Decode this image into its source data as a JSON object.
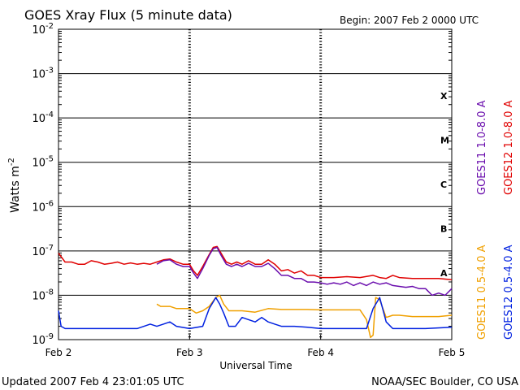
{
  "header": {
    "title": "GOES Xray Flux (5 minute data)",
    "begin": "Begin:  2007 Feb 2 0000 UTC"
  },
  "footer": {
    "updated": "Updated 2007 Feb  4 23:01:05 UTC",
    "source": "NOAA/SEC Boulder, CO USA"
  },
  "chart_data": {
    "type": "line",
    "title": "GOES Xray Flux (5 minute data)",
    "xlabel": "Universal Time",
    "ylabel": "Watts m",
    "ylabel_exponent": "-2",
    "x_ticks": [
      "Feb 2",
      "Feb 3",
      "Feb 4",
      "Feb 5"
    ],
    "y_scale": "log",
    "ylim": [
      1e-09,
      0.01
    ],
    "y_ticks": [
      {
        "base": "10",
        "exp": "-9"
      },
      {
        "base": "10",
        "exp": "-8"
      },
      {
        "base": "10",
        "exp": "-7"
      },
      {
        "base": "10",
        "exp": "-6"
      },
      {
        "base": "10",
        "exp": "-5"
      },
      {
        "base": "10",
        "exp": "-4"
      },
      {
        "base": "10",
        "exp": "-3"
      },
      {
        "base": "10",
        "exp": "-2"
      }
    ],
    "flare_classes": [
      {
        "label": "X",
        "exponent": -4
      },
      {
        "label": "M",
        "exponent": -5
      },
      {
        "label": "C",
        "exponent": -6
      },
      {
        "label": "B",
        "exponent": -7
      },
      {
        "label": "A",
        "exponent": -8
      }
    ],
    "legend": [
      {
        "name": "GOES11 1.0-8.0 A",
        "color": "#6a0dad"
      },
      {
        "name": "GOES12 1.0-8.0 A",
        "color": "#e00000"
      },
      {
        "name": "GOES11 0.5-4.0 A",
        "color": "#f0a000"
      },
      {
        "name": "GOES12 0.5-4.0 A",
        "color": "#0020e0"
      }
    ],
    "x_unit": "days since 2007 Feb 2 0000 UTC",
    "series": [
      {
        "name": "GOES12 1.0-8.0 A",
        "color": "#e00000",
        "points": [
          [
            0,
            -7.05
          ],
          [
            0.05,
            -7.25
          ],
          [
            0.1,
            -7.25
          ],
          [
            0.15,
            -7.3
          ],
          [
            0.2,
            -7.3
          ],
          [
            0.25,
            -7.22
          ],
          [
            0.3,
            -7.25
          ],
          [
            0.35,
            -7.3
          ],
          [
            0.4,
            -7.28
          ],
          [
            0.45,
            -7.25
          ],
          [
            0.5,
            -7.3
          ],
          [
            0.55,
            -7.27
          ],
          [
            0.6,
            -7.3
          ],
          [
            0.65,
            -7.28
          ],
          [
            0.7,
            -7.3
          ],
          [
            0.75,
            -7.25
          ],
          [
            0.8,
            -7.2
          ],
          [
            0.85,
            -7.18
          ],
          [
            0.9,
            -7.25
          ],
          [
            0.95,
            -7.3
          ],
          [
            1.0,
            -7.3
          ],
          [
            1.03,
            -7.45
          ],
          [
            1.06,
            -7.55
          ],
          [
            1.1,
            -7.35
          ],
          [
            1.15,
            -7.08
          ],
          [
            1.18,
            -6.92
          ],
          [
            1.21,
            -6.9
          ],
          [
            1.24,
            -7.05
          ],
          [
            1.28,
            -7.25
          ],
          [
            1.32,
            -7.3
          ],
          [
            1.36,
            -7.25
          ],
          [
            1.4,
            -7.3
          ],
          [
            1.45,
            -7.22
          ],
          [
            1.5,
            -7.3
          ],
          [
            1.55,
            -7.3
          ],
          [
            1.6,
            -7.2
          ],
          [
            1.65,
            -7.3
          ],
          [
            1.7,
            -7.45
          ],
          [
            1.75,
            -7.42
          ],
          [
            1.8,
            -7.5
          ],
          [
            1.85,
            -7.45
          ],
          [
            1.9,
            -7.55
          ],
          [
            1.95,
            -7.55
          ],
          [
            2.0,
            -7.6
          ],
          [
            2.1,
            -7.6
          ],
          [
            2.2,
            -7.58
          ],
          [
            2.3,
            -7.6
          ],
          [
            2.4,
            -7.55
          ],
          [
            2.45,
            -7.6
          ],
          [
            2.5,
            -7.62
          ],
          [
            2.55,
            -7.55
          ],
          [
            2.6,
            -7.6
          ],
          [
            2.7,
            -7.62
          ],
          [
            2.8,
            -7.62
          ],
          [
            2.9,
            -7.62
          ],
          [
            3.0,
            -7.65
          ]
        ]
      },
      {
        "name": "GOES11 1.0-8.0 A",
        "color": "#6a0dad",
        "points": [
          [
            0.75,
            -7.3
          ],
          [
            0.8,
            -7.22
          ],
          [
            0.85,
            -7.2
          ],
          [
            0.9,
            -7.3
          ],
          [
            0.95,
            -7.35
          ],
          [
            1.0,
            -7.35
          ],
          [
            1.03,
            -7.5
          ],
          [
            1.06,
            -7.62
          ],
          [
            1.1,
            -7.4
          ],
          [
            1.15,
            -7.1
          ],
          [
            1.18,
            -6.95
          ],
          [
            1.21,
            -6.92
          ],
          [
            1.24,
            -7.1
          ],
          [
            1.28,
            -7.3
          ],
          [
            1.32,
            -7.35
          ],
          [
            1.36,
            -7.3
          ],
          [
            1.4,
            -7.35
          ],
          [
            1.45,
            -7.28
          ],
          [
            1.5,
            -7.35
          ],
          [
            1.55,
            -7.35
          ],
          [
            1.6,
            -7.28
          ],
          [
            1.65,
            -7.4
          ],
          [
            1.7,
            -7.55
          ],
          [
            1.75,
            -7.55
          ],
          [
            1.8,
            -7.62
          ],
          [
            1.85,
            -7.62
          ],
          [
            1.9,
            -7.7
          ],
          [
            1.95,
            -7.7
          ],
          [
            2.0,
            -7.72
          ],
          [
            2.05,
            -7.75
          ],
          [
            2.1,
            -7.72
          ],
          [
            2.15,
            -7.75
          ],
          [
            2.2,
            -7.7
          ],
          [
            2.25,
            -7.78
          ],
          [
            2.3,
            -7.72
          ],
          [
            2.35,
            -7.78
          ],
          [
            2.4,
            -7.7
          ],
          [
            2.45,
            -7.75
          ],
          [
            2.5,
            -7.72
          ],
          [
            2.55,
            -7.78
          ],
          [
            2.6,
            -7.8
          ],
          [
            2.65,
            -7.82
          ],
          [
            2.7,
            -7.8
          ],
          [
            2.75,
            -7.85
          ],
          [
            2.8,
            -7.85
          ],
          [
            2.85,
            -8.0
          ],
          [
            2.9,
            -7.95
          ],
          [
            2.95,
            -8.0
          ],
          [
            3.0,
            -7.85
          ]
        ]
      },
      {
        "name": "GOES11 0.5-4.0 A",
        "color": "#f0a000",
        "points": [
          [
            0.75,
            -8.2
          ],
          [
            0.78,
            -8.25
          ],
          [
            0.85,
            -8.25
          ],
          [
            0.9,
            -8.3
          ],
          [
            1.0,
            -8.3
          ],
          [
            1.05,
            -8.4
          ],
          [
            1.1,
            -8.35
          ],
          [
            1.15,
            -8.25
          ],
          [
            1.2,
            -8.05
          ],
          [
            1.23,
            -8.0
          ],
          [
            1.26,
            -8.2
          ],
          [
            1.3,
            -8.35
          ],
          [
            1.4,
            -8.35
          ],
          [
            1.5,
            -8.38
          ],
          [
            1.6,
            -8.3
          ],
          [
            1.7,
            -8.32
          ],
          [
            1.8,
            -8.32
          ],
          [
            1.9,
            -8.32
          ],
          [
            2.0,
            -8.33
          ],
          [
            2.1,
            -8.33
          ],
          [
            2.2,
            -8.33
          ],
          [
            2.3,
            -8.33
          ],
          [
            2.35,
            -8.55
          ],
          [
            2.38,
            -8.95
          ],
          [
            2.4,
            -8.9
          ],
          [
            2.42,
            -8.05
          ],
          [
            2.45,
            -8.1
          ],
          [
            2.5,
            -8.5
          ],
          [
            2.55,
            -8.45
          ],
          [
            2.6,
            -8.45
          ],
          [
            2.7,
            -8.48
          ],
          [
            2.8,
            -8.48
          ],
          [
            2.9,
            -8.48
          ],
          [
            3.0,
            -8.45
          ]
        ]
      },
      {
        "name": "GOES12 0.5-4.0 A",
        "color": "#0020e0",
        "points": [
          [
            0,
            -8.35
          ],
          [
            0.02,
            -8.7
          ],
          [
            0.05,
            -8.75
          ],
          [
            0.1,
            -8.75
          ],
          [
            0.2,
            -8.75
          ],
          [
            0.3,
            -8.75
          ],
          [
            0.4,
            -8.75
          ],
          [
            0.5,
            -8.75
          ],
          [
            0.6,
            -8.75
          ],
          [
            0.7,
            -8.65
          ],
          [
            0.75,
            -8.7
          ],
          [
            0.8,
            -8.65
          ],
          [
            0.85,
            -8.6
          ],
          [
            0.9,
            -8.7
          ],
          [
            1.0,
            -8.75
          ],
          [
            1.1,
            -8.7
          ],
          [
            1.15,
            -8.3
          ],
          [
            1.18,
            -8.15
          ],
          [
            1.2,
            -8.05
          ],
          [
            1.23,
            -8.2
          ],
          [
            1.26,
            -8.4
          ],
          [
            1.3,
            -8.7
          ],
          [
            1.35,
            -8.7
          ],
          [
            1.4,
            -8.5
          ],
          [
            1.45,
            -8.55
          ],
          [
            1.5,
            -8.6
          ],
          [
            1.55,
            -8.5
          ],
          [
            1.6,
            -8.6
          ],
          [
            1.65,
            -8.65
          ],
          [
            1.7,
            -8.7
          ],
          [
            1.8,
            -8.7
          ],
          [
            1.9,
            -8.72
          ],
          [
            2.0,
            -8.75
          ],
          [
            2.1,
            -8.75
          ],
          [
            2.2,
            -8.75
          ],
          [
            2.3,
            -8.75
          ],
          [
            2.35,
            -8.75
          ],
          [
            2.4,
            -8.3
          ],
          [
            2.45,
            -8.05
          ],
          [
            2.5,
            -8.6
          ],
          [
            2.55,
            -8.75
          ],
          [
            2.7,
            -8.75
          ],
          [
            2.8,
            -8.75
          ],
          [
            3.0,
            -8.72
          ]
        ]
      }
    ]
  }
}
